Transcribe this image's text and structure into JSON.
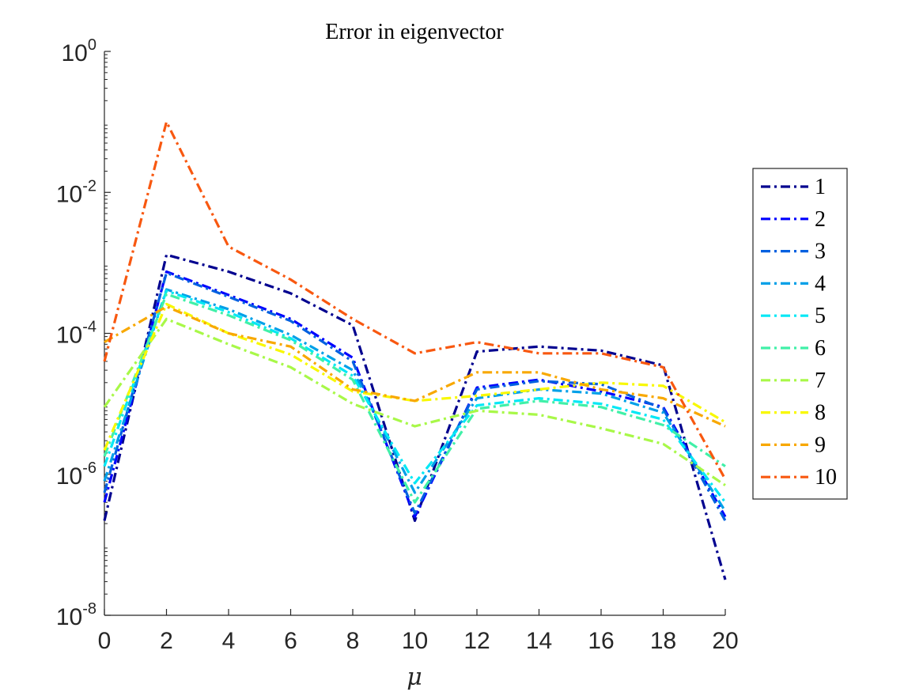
{
  "chart_data": {
    "type": "line",
    "title": "Error in eigenvector",
    "xlabel": "μ",
    "ylabel": "",
    "yscale": "log",
    "xlim": [
      0,
      20
    ],
    "ylim": [
      1e-08,
      1
    ],
    "grid": false,
    "legend_position": "right",
    "x": [
      0,
      2,
      4,
      6,
      8,
      10,
      12,
      14,
      16,
      18,
      20
    ],
    "xticks": [
      "0",
      "2",
      "4",
      "6",
      "8",
      "10",
      "12",
      "14",
      "16",
      "18",
      "20"
    ],
    "yticks": [
      {
        "base": "10",
        "exp": "-8",
        "value": 1e-08
      },
      {
        "base": "10",
        "exp": "-6",
        "value": 1e-06
      },
      {
        "base": "10",
        "exp": "-4",
        "value": 0.0001
      },
      {
        "base": "10",
        "exp": "-2",
        "value": 0.01
      },
      {
        "base": "10",
        "exp": "0",
        "value": 1
      }
    ],
    "series": [
      {
        "name": "1",
        "color": "#00008f",
        "values": [
          2.2e-07,
          0.0013,
          0.00075,
          0.00037,
          0.00013,
          2.2e-07,
          5.5e-05,
          6.5e-05,
          5.7e-05,
          3.5e-05,
          3.2e-08
        ]
      },
      {
        "name": "2",
        "color": "#0000ff",
        "values": [
          4e-07,
          0.00075,
          0.00035,
          0.00016,
          4.5e-05,
          2.5e-07,
          1.7e-05,
          2.2e-05,
          1.5e-05,
          9e-06,
          2.5e-07
        ]
      },
      {
        "name": "3",
        "color": "#0060e0",
        "values": [
          5.5e-07,
          0.00072,
          0.00033,
          0.00015,
          4e-05,
          2.8e-07,
          1.6e-05,
          2.1e-05,
          1.9e-05,
          8.5e-06,
          2.2e-07
        ]
      },
      {
        "name": "4",
        "color": "#00a0e8",
        "values": [
          8e-07,
          0.00042,
          0.00022,
          9.5e-05,
          3e-05,
          5.5e-07,
          1.2e-05,
          1.6e-05,
          1.4e-05,
          7.5e-06,
          3e-07
        ]
      },
      {
        "name": "5",
        "color": "#00e8f5",
        "values": [
          1.3e-06,
          0.0004,
          0.0002,
          8.5e-05,
          2.5e-05,
          7.5e-07,
          9.5e-06,
          1.2e-05,
          1e-05,
          6e-06,
          4e-07
        ]
      },
      {
        "name": "6",
        "color": "#40f0a8",
        "values": [
          1.8e-06,
          0.00036,
          0.00018,
          8e-05,
          2.2e-05,
          4e-07,
          8.5e-06,
          1.1e-05,
          9e-06,
          5e-06,
          1.3e-06
        ]
      },
      {
        "name": "7",
        "color": "#a8f848",
        "values": [
          9e-06,
          0.00016,
          7e-05,
          3.3e-05,
          1e-05,
          4.8e-06,
          8e-06,
          7e-06,
          4.5e-06,
          2.7e-06,
          7e-07
        ]
      },
      {
        "name": "8",
        "color": "#f8f800",
        "values": [
          2.2e-06,
          0.00026,
          0.0001,
          5e-05,
          1.5e-05,
          1.1e-05,
          1.3e-05,
          1.6e-05,
          2e-05,
          1.8e-05,
          5.5e-06
        ]
      },
      {
        "name": "9",
        "color": "#f8a800",
        "values": [
          7.5e-05,
          0.00024,
          0.0001,
          6.5e-05,
          1.6e-05,
          1.1e-05,
          2.8e-05,
          2.8e-05,
          1.6e-05,
          1.2e-05,
          4.8e-06
        ]
      },
      {
        "name": "10",
        "color": "#f85810",
        "values": [
          4e-05,
          0.1,
          0.0017,
          0.00058,
          0.00016,
          5.2e-05,
          7.5e-05,
          5.2e-05,
          5.2e-05,
          3.3e-05,
          8.5e-07
        ]
      }
    ]
  }
}
